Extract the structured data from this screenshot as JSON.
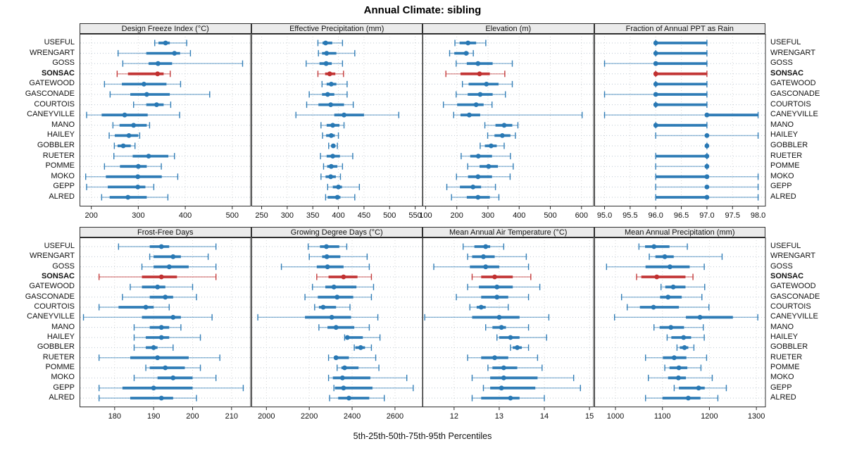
{
  "title": "Annual Climate: sibling",
  "footer": "5th-25th-50th-75th-95th Percentiles",
  "chart_data": {
    "type": "dotplot",
    "title": "Annual Climate: sibling",
    "xlabel": "5th-25th-50th-75th-95th Percentiles",
    "percentiles": [
      5,
      25,
      50,
      75,
      95
    ],
    "legend_position": "none",
    "grid": "dotted",
    "stations": [
      "USEFUL",
      "WRENGART",
      "GOSS",
      "SONSAC",
      "GATEWOOD",
      "GASCONADE",
      "COURTOIS",
      "CANEYVILLE",
      "MANO",
      "HAILEY",
      "GOBBLER",
      "RUETER",
      "POMME",
      "MOKO",
      "GEPP",
      "ALRED"
    ],
    "highlight": "SONSAC",
    "colors": {
      "series": "#2878B4",
      "highlight": "#C13030",
      "grid": "#d8d8d8",
      "guide": "#bcc8d2",
      "panel_border": "#2f2f2f",
      "header_bg": "#ebebeb"
    },
    "panels": [
      {
        "title": "Design Freeze Index (°C)",
        "row": 0,
        "col": 0,
        "xmin": 175,
        "xmax": 540,
        "ticks": [
          200,
          300,
          400,
          500
        ],
        "tick_labels": [
          "200",
          "300",
          "400",
          "500"
        ],
        "values": {
          "USEFUL": [
            335,
            343,
            358,
            367,
            403
          ],
          "WRENGART": [
            257,
            317,
            377,
            389,
            411
          ],
          "GOSS": [
            267,
            322,
            342,
            372,
            522
          ],
          "SONSAC": [
            255,
            278,
            341,
            354,
            368
          ],
          "GATEWOOD": [
            228,
            265,
            312,
            360,
            390
          ],
          "GASCONADE": [
            240,
            283,
            318,
            367,
            452
          ],
          "COURTOIS": [
            290,
            317,
            339,
            354,
            369
          ],
          "CANEYVILLE": [
            190,
            222,
            271,
            320,
            388
          ],
          "MANO": [
            246,
            260,
            290,
            318,
            324
          ],
          "HAILEY": [
            238,
            250,
            280,
            300,
            303
          ],
          "GOBBLER": [
            249,
            256,
            268,
            284,
            293
          ],
          "RUETER": [
            248,
            288,
            322,
            364,
            377
          ],
          "POMME": [
            228,
            261,
            300,
            318,
            349
          ],
          "MOKO": [
            188,
            231,
            299,
            350,
            384
          ],
          "GEPP": [
            190,
            235,
            299,
            315,
            333
          ],
          "ALRED": [
            222,
            239,
            278,
            318,
            363
          ]
        }
      },
      {
        "title": "Effective Precipitation (mm)",
        "row": 0,
        "col": 1,
        "xmin": 230,
        "xmax": 565,
        "ticks": [
          250,
          300,
          350,
          400,
          450,
          500,
          550
        ],
        "tick_labels": [
          "250",
          "300",
          "350",
          "400",
          "450",
          "500",
          "550"
        ],
        "values": {
          "USEFUL": [
            360,
            369,
            375,
            388,
            408
          ],
          "WRENGART": [
            361,
            368,
            377,
            396,
            432
          ],
          "GOSS": [
            337,
            363,
            376,
            387,
            408
          ],
          "SONSAC": [
            360,
            374,
            383,
            394,
            410
          ],
          "GATEWOOD": [
            368,
            377,
            386,
            396,
            417
          ],
          "GASCONADE": [
            343,
            368,
            379,
            392,
            417
          ],
          "COURTOIS": [
            338,
            361,
            385,
            411,
            429
          ],
          "CANEYVILLE": [
            317,
            392,
            411,
            450,
            518
          ],
          "MANO": [
            366,
            377,
            389,
            402,
            411
          ],
          "HAILEY": [
            369,
            376,
            386,
            393,
            400
          ],
          "GOBBLER": [
            381,
            386,
            390,
            394,
            398
          ],
          "RUETER": [
            365,
            377,
            389,
            403,
            428
          ],
          "POMME": [
            371,
            378,
            386,
            398,
            408
          ],
          "MOKO": [
            366,
            375,
            385,
            395,
            404
          ],
          "GEPP": [
            379,
            389,
            400,
            407,
            441
          ],
          "ALRED": [
            375,
            379,
            398,
            404,
            432
          ]
        }
      },
      {
        "title": "Elevation (m)",
        "row": 0,
        "col": 2,
        "xmin": 90,
        "xmax": 640,
        "ticks": [
          100,
          200,
          300,
          400,
          500,
          600
        ],
        "tick_labels": [
          "100",
          "200",
          "300",
          "400",
          "500",
          "600"
        ],
        "values": {
          "USEFUL": [
            194,
            209,
            236,
            262,
            293
          ],
          "WRENGART": [
            177,
            192,
            230,
            238,
            253
          ],
          "GOSS": [
            198,
            232,
            268,
            315,
            378
          ],
          "SONSAC": [
            165,
            212,
            273,
            306,
            354
          ],
          "GATEWOOD": [
            218,
            238,
            295,
            334,
            378
          ],
          "GASCONADE": [
            198,
            235,
            275,
            315,
            356
          ],
          "COURTOIS": [
            157,
            201,
            262,
            286,
            313
          ],
          "CANEYVILLE": [
            190,
            212,
            240,
            275,
            602
          ],
          "MANO": [
            290,
            324,
            352,
            378,
            396
          ],
          "HAILEY": [
            299,
            321,
            346,
            372,
            388
          ],
          "GOBBLER": [
            275,
            290,
            310,
            328,
            352
          ],
          "RUETER": [
            214,
            243,
            269,
            313,
            372
          ],
          "POMME": [
            235,
            273,
            302,
            332,
            381
          ],
          "MOKO": [
            199,
            236,
            268,
            313,
            371
          ],
          "GEPP": [
            168,
            210,
            252,
            278,
            324
          ],
          "ALRED": [
            183,
            232,
            268,
            306,
            335
          ]
        }
      },
      {
        "title": "Fraction of Annual PPT as Rain",
        "row": 0,
        "col": 3,
        "xmin": 94.8,
        "xmax": 98.15,
        "ticks": [
          95.0,
          95.5,
          96.0,
          96.5,
          97.0,
          97.5,
          98.0
        ],
        "tick_labels": [
          "95.0",
          "95.5",
          "96.0",
          "96.5",
          "97.0",
          "97.5",
          "98.0"
        ],
        "values": {
          "USEFUL": [
            96,
            96,
            96,
            97,
            97
          ],
          "WRENGART": [
            96,
            96,
            96,
            97,
            97
          ],
          "GOSS": [
            95,
            96,
            96,
            97,
            97
          ],
          "SONSAC": [
            96,
            96,
            96,
            97,
            97
          ],
          "GATEWOOD": [
            96,
            96,
            96,
            97,
            97
          ],
          "GASCONADE": [
            95,
            96,
            96,
            97,
            97
          ],
          "COURTOIS": [
            96,
            96,
            96,
            97,
            97
          ],
          "CANEYVILLE": [
            95,
            97,
            97,
            98,
            98
          ],
          "MANO": [
            96,
            96,
            96,
            97,
            97
          ],
          "HAILEY": [
            96,
            97,
            97,
            97,
            98
          ],
          "GOBBLER": [
            97,
            97,
            97,
            97,
            97
          ],
          "RUETER": [
            96,
            96,
            97,
            97,
            97
          ],
          "POMME": [
            96,
            97,
            97,
            97,
            97
          ],
          "MOKO": [
            96,
            96,
            97,
            97,
            98
          ],
          "GEPP": [
            96,
            97,
            97,
            97,
            98
          ],
          "ALRED": [
            96,
            96,
            97,
            97,
            98
          ]
        }
      },
      {
        "title": "Frost-Free Days",
        "row": 1,
        "col": 0,
        "xmin": 171,
        "xmax": 215,
        "ticks": [
          180,
          190,
          200,
          210
        ],
        "tick_labels": [
          "180",
          "190",
          "200",
          "210"
        ],
        "values": {
          "USEFUL": [
            181,
            189,
            192,
            194,
            206
          ],
          "WRENGART": [
            189,
            190,
            195,
            197,
            204
          ],
          "GOSS": [
            187,
            190,
            194,
            199,
            206
          ],
          "SONSAC": [
            176,
            187,
            192,
            196,
            206
          ],
          "GATEWOOD": [
            184,
            187,
            191,
            193,
            200
          ],
          "GASCONADE": [
            182,
            189,
            193,
            195,
            201
          ],
          "COURTOIS": [
            176,
            181,
            188,
            190,
            194
          ],
          "CANEYVILLE": [
            172,
            187,
            195,
            197,
            205
          ],
          "MANO": [
            185,
            189,
            192,
            194,
            197
          ],
          "HAILEY": [
            185,
            188,
            192,
            194,
            202
          ],
          "GOBBLER": [
            185,
            188,
            190,
            191,
            195
          ],
          "RUETER": [
            176,
            184,
            191,
            199,
            207
          ],
          "POMME": [
            188,
            189,
            193,
            198,
            202
          ],
          "MOKO": [
            185,
            191,
            195,
            200,
            206
          ],
          "GEPP": [
            176,
            182,
            190,
            200,
            213
          ],
          "ALRED": [
            176,
            184,
            192,
            195,
            201
          ]
        }
      },
      {
        "title": "Growing Degree Days (°C)",
        "row": 1,
        "col": 1,
        "xmin": 1930,
        "xmax": 2730,
        "ticks": [
          2000,
          2200,
          2400,
          2600
        ],
        "tick_labels": [
          "2000",
          "2200",
          "2400",
          "2600"
        ],
        "values": {
          "USEFUL": [
            2195,
            2250,
            2280,
            2340,
            2375
          ],
          "WRENGART": [
            2200,
            2260,
            2282,
            2345,
            2470
          ],
          "GOSS": [
            2070,
            2235,
            2285,
            2360,
            2480
          ],
          "SONSAC": [
            2235,
            2290,
            2360,
            2425,
            2490
          ],
          "GATEWOOD": [
            2215,
            2275,
            2315,
            2420,
            2500
          ],
          "GASCONADE": [
            2180,
            2240,
            2330,
            2405,
            2490
          ],
          "COURTOIS": [
            2225,
            2245,
            2265,
            2325,
            2390
          ],
          "CANEYVILLE": [
            1960,
            2180,
            2305,
            2395,
            2520
          ],
          "MANO": [
            2245,
            2285,
            2325,
            2410,
            2480
          ],
          "HAILEY": [
            2365,
            2370,
            2378,
            2450,
            2530
          ],
          "GOBBLER": [
            2410,
            2415,
            2440,
            2460,
            2490
          ],
          "RUETER": [
            2290,
            2315,
            2325,
            2385,
            2510
          ],
          "POMME": [
            2330,
            2350,
            2365,
            2430,
            2525
          ],
          "MOKO": [
            2290,
            2310,
            2355,
            2485,
            2655
          ],
          "GEPP": [
            2315,
            2320,
            2360,
            2495,
            2685
          ],
          "ALRED": [
            2295,
            2335,
            2385,
            2480,
            2550
          ]
        }
      },
      {
        "title": "Mean Annual Air Temperature (°C)",
        "row": 1,
        "col": 2,
        "xmin": 11.3,
        "xmax": 15.1,
        "ticks": [
          12,
          13,
          14,
          15
        ],
        "tick_labels": [
          "12",
          "13",
          "14",
          "15"
        ],
        "values": {
          "USEFUL": [
            12.2,
            12.45,
            12.7,
            12.8,
            13.1
          ],
          "WRENGART": [
            12.3,
            12.4,
            12.65,
            12.9,
            13.6
          ],
          "GOSS": [
            11.55,
            12.35,
            12.7,
            13.0,
            13.65
          ],
          "SONSAC": [
            12.4,
            12.6,
            12.9,
            13.3,
            13.7
          ],
          "GATEWOOD": [
            12.3,
            12.55,
            12.95,
            13.3,
            13.9
          ],
          "GASCONADE": [
            12.05,
            12.6,
            12.95,
            13.2,
            13.65
          ],
          "COURTOIS": [
            12.35,
            12.5,
            12.6,
            12.7,
            13.2
          ],
          "CANEYVILLE": [
            11.35,
            12.4,
            13.0,
            13.45,
            14.1
          ],
          "MANO": [
            12.7,
            12.85,
            13.05,
            13.15,
            13.65
          ],
          "HAILEY": [
            12.95,
            13.0,
            13.25,
            13.45,
            14.05
          ],
          "GOBBLER": [
            13.25,
            13.3,
            13.4,
            13.5,
            13.65
          ],
          "RUETER": [
            12.3,
            12.6,
            12.9,
            13.2,
            13.85
          ],
          "POMME": [
            12.75,
            12.85,
            13.1,
            13.4,
            13.95
          ],
          "MOKO": [
            12.4,
            12.8,
            13.1,
            13.85,
            14.65
          ],
          "GEPP": [
            12.65,
            12.8,
            13.05,
            13.8,
            14.8
          ],
          "ALRED": [
            12.4,
            12.6,
            13.25,
            13.45,
            14.0
          ]
        }
      },
      {
        "title": "Mean Annual Precipitation (mm)",
        "row": 1,
        "col": 3,
        "xmin": 955,
        "xmax": 1320,
        "ticks": [
          1000,
          1100,
          1200,
          1300
        ],
        "tick_labels": [
          "1000",
          "1100",
          "1200",
          "1300"
        ],
        "values": {
          "USEFUL": [
            1050,
            1063,
            1082,
            1115,
            1153
          ],
          "WRENGART": [
            1072,
            1085,
            1105,
            1124,
            1227
          ],
          "GOSS": [
            981,
            1064,
            1116,
            1158,
            1189
          ],
          "SONSAC": [
            1045,
            1055,
            1088,
            1149,
            1165
          ],
          "GATEWOOD": [
            1097,
            1106,
            1123,
            1149,
            1190
          ],
          "GASCONADE": [
            1013,
            1095,
            1112,
            1141,
            1184
          ],
          "COURTOIS": [
            1025,
            1052,
            1081,
            1135,
            1199
          ],
          "CANEYVILLE": [
            998,
            1150,
            1180,
            1250,
            1303
          ],
          "MANO": [
            1082,
            1094,
            1118,
            1146,
            1187
          ],
          "HAILEY": [
            1110,
            1119,
            1145,
            1161,
            1189
          ],
          "GOBBLER": [
            1131,
            1137,
            1147,
            1155,
            1167
          ],
          "RUETER": [
            1064,
            1101,
            1125,
            1151,
            1194
          ],
          "POMME": [
            1105,
            1115,
            1135,
            1153,
            1182
          ],
          "MOKO": [
            1070,
            1112,
            1134,
            1150,
            1206
          ],
          "GEPP": [
            1125,
            1135,
            1177,
            1190,
            1236
          ],
          "ALRED": [
            1064,
            1100,
            1155,
            1181,
            1218
          ]
        }
      }
    ]
  }
}
